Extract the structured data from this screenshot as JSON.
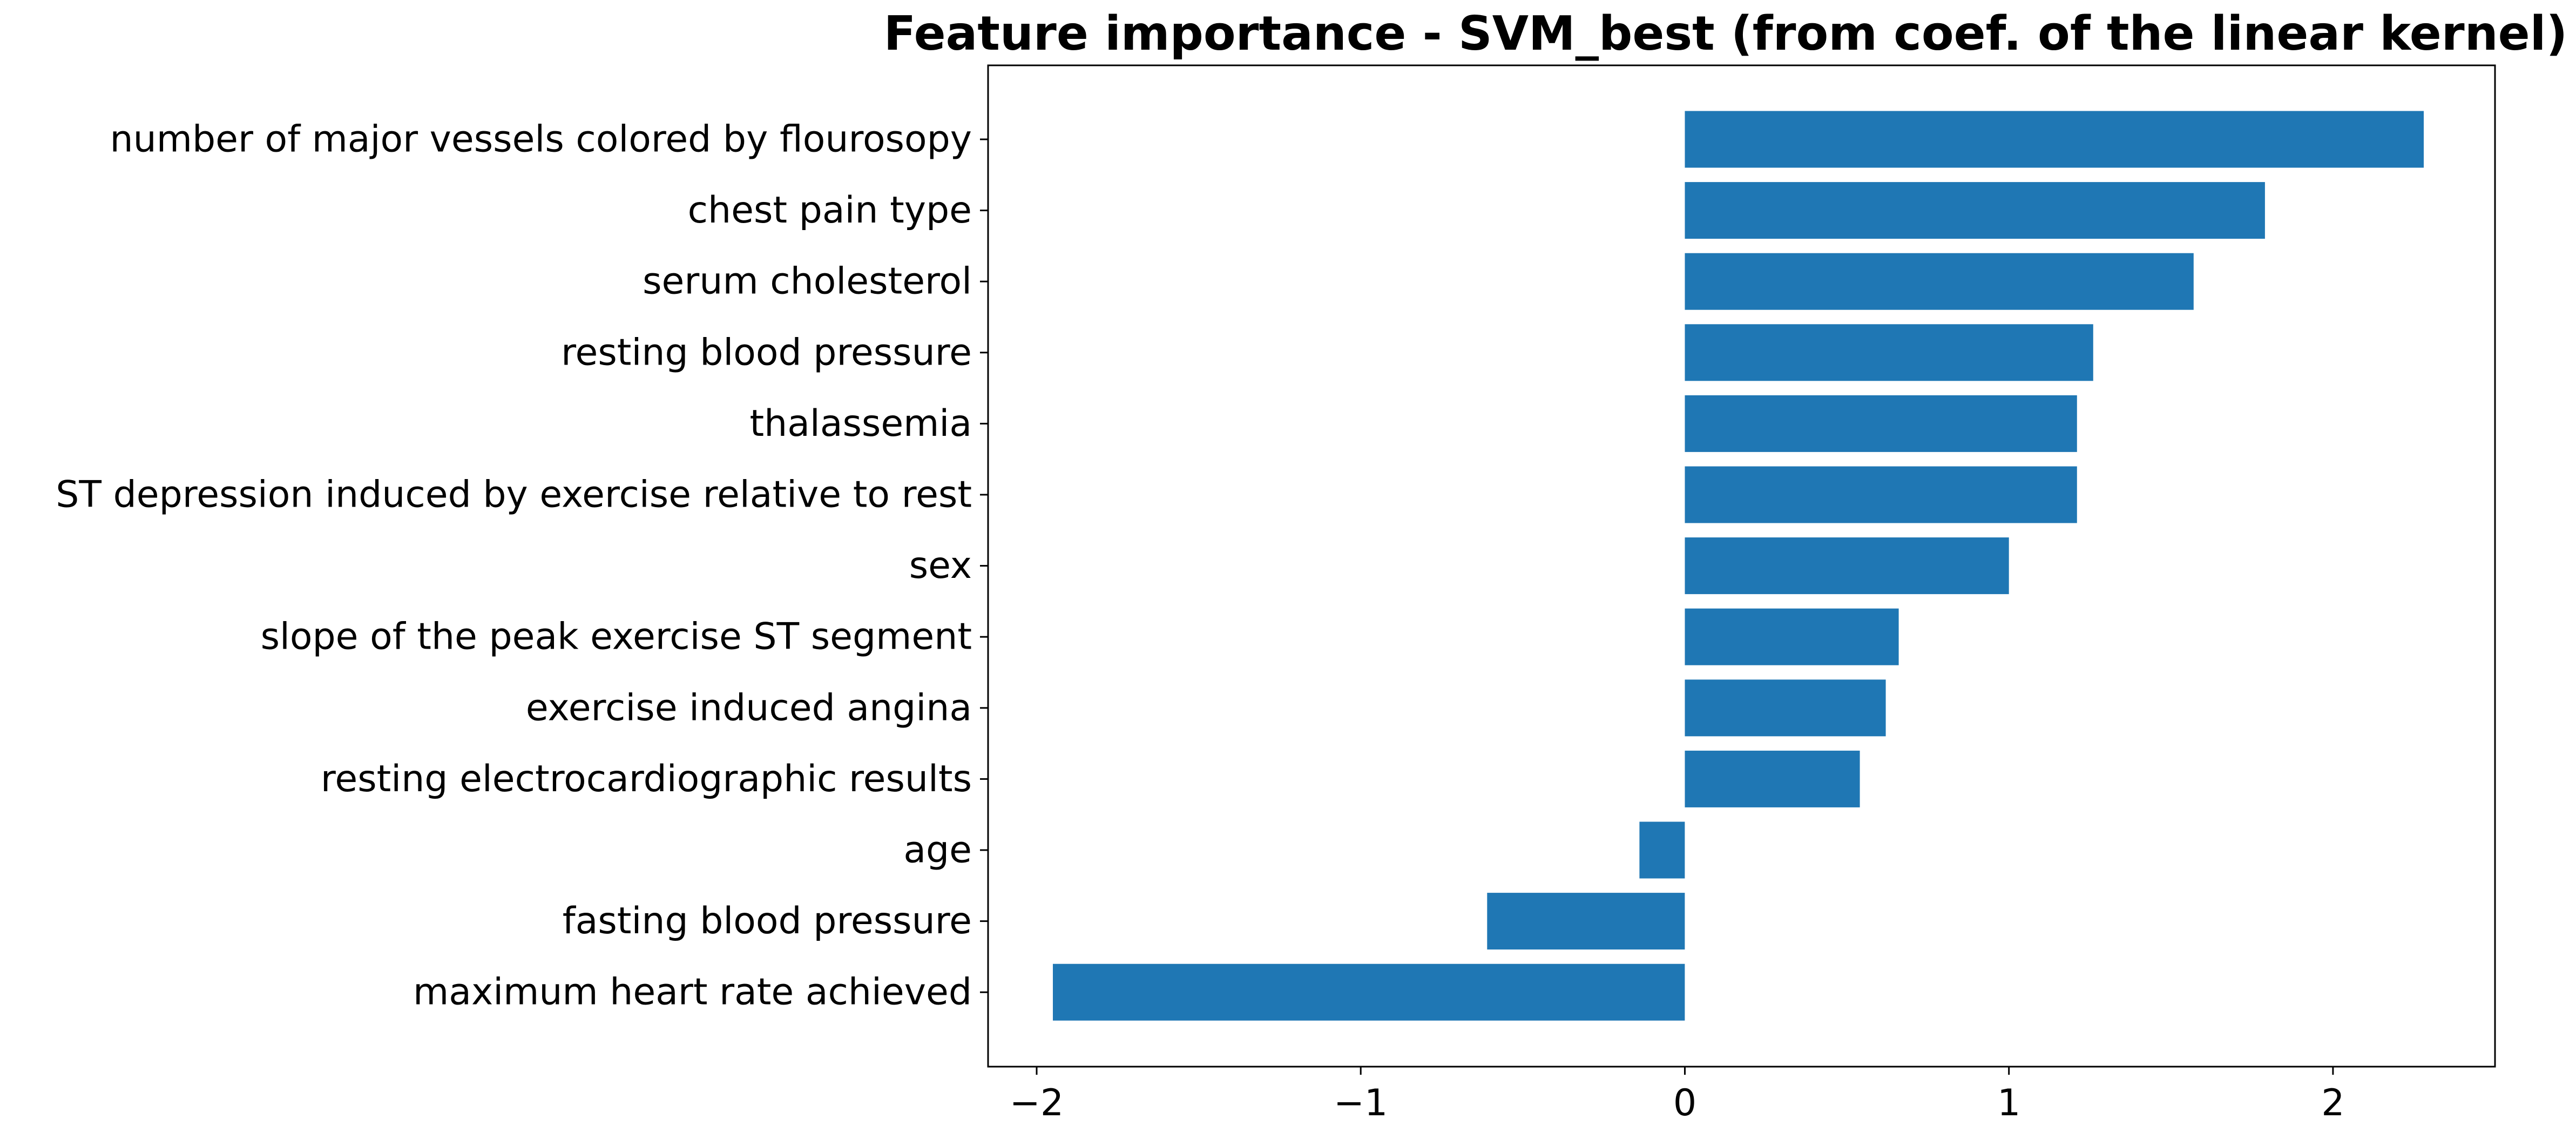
{
  "chart_data": {
    "type": "bar",
    "orientation": "horizontal",
    "title": "Feature importance - SVM_best (from coef. of the linear kernel)",
    "xlabel": "",
    "ylabel": "",
    "categories": [
      "number of major vessels colored by flourosopy",
      "chest pain type",
      "serum cholesterol",
      "resting blood pressure",
      "thalassemia",
      "ST depression induced by exercise relative to rest",
      "sex",
      "slope of the peak exercise ST segment",
      "exercise induced angina",
      "resting electrocardiographic results",
      "age",
      "fasting blood pressure",
      "maximum heart rate achieved"
    ],
    "values": [
      2.28,
      1.79,
      1.57,
      1.26,
      1.21,
      1.21,
      1.0,
      0.66,
      0.62,
      0.54,
      -0.14,
      -0.61,
      -1.95
    ],
    "xlim": [
      -2.15,
      2.5
    ],
    "xticks": [
      -2,
      -1,
      0,
      1,
      2
    ],
    "xtick_labels": [
      "−2",
      "−1",
      "0",
      "1",
      "2"
    ],
    "bar_color": "#1f77b4",
    "grid": false,
    "legend": "none"
  }
}
